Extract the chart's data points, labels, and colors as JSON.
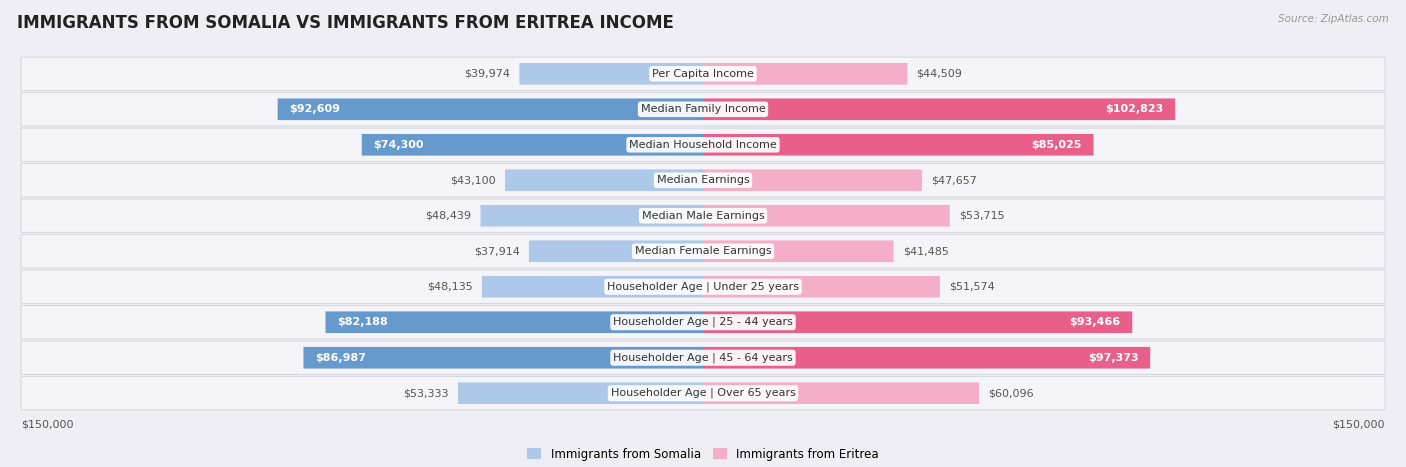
{
  "title": "IMMIGRANTS FROM SOMALIA VS IMMIGRANTS FROM ERITREA INCOME",
  "source": "Source: ZipAtlas.com",
  "categories": [
    "Per Capita Income",
    "Median Family Income",
    "Median Household Income",
    "Median Earnings",
    "Median Male Earnings",
    "Median Female Earnings",
    "Householder Age | Under 25 years",
    "Householder Age | 25 - 44 years",
    "Householder Age | 45 - 64 years",
    "Householder Age | Over 65 years"
  ],
  "somalia_values": [
    39974,
    92609,
    74300,
    43100,
    48439,
    37914,
    48135,
    82188,
    86987,
    53333
  ],
  "eritrea_values": [
    44509,
    102823,
    85025,
    47657,
    53715,
    41485,
    51574,
    93466,
    97373,
    60096
  ],
  "somalia_labels": [
    "$39,974",
    "$92,609",
    "$74,300",
    "$43,100",
    "$48,439",
    "$37,914",
    "$48,135",
    "$82,188",
    "$86,987",
    "$53,333"
  ],
  "eritrea_labels": [
    "$44,509",
    "$102,823",
    "$85,025",
    "$47,657",
    "$53,715",
    "$41,485",
    "$51,574",
    "$93,466",
    "$97,373",
    "$60,096"
  ],
  "somalia_color_low": "#adc8e8",
  "somalia_color_high": "#6699cc",
  "eritrea_color_low": "#f5aec8",
  "eritrea_color_high": "#e8608a",
  "max_value": 150000,
  "legend_somalia": "Immigrants from Somalia",
  "legend_eritrea": "Immigrants from Eritrea",
  "background_color": "#eeeef4",
  "row_bg_color": "#f5f5f9",
  "row_border_color": "#d8d8e0",
  "title_fontsize": 12,
  "label_fontsize": 8,
  "category_fontsize": 8,
  "axis_label_fontsize": 8,
  "somalia_threshold": 65000,
  "eritrea_threshold": 65000
}
